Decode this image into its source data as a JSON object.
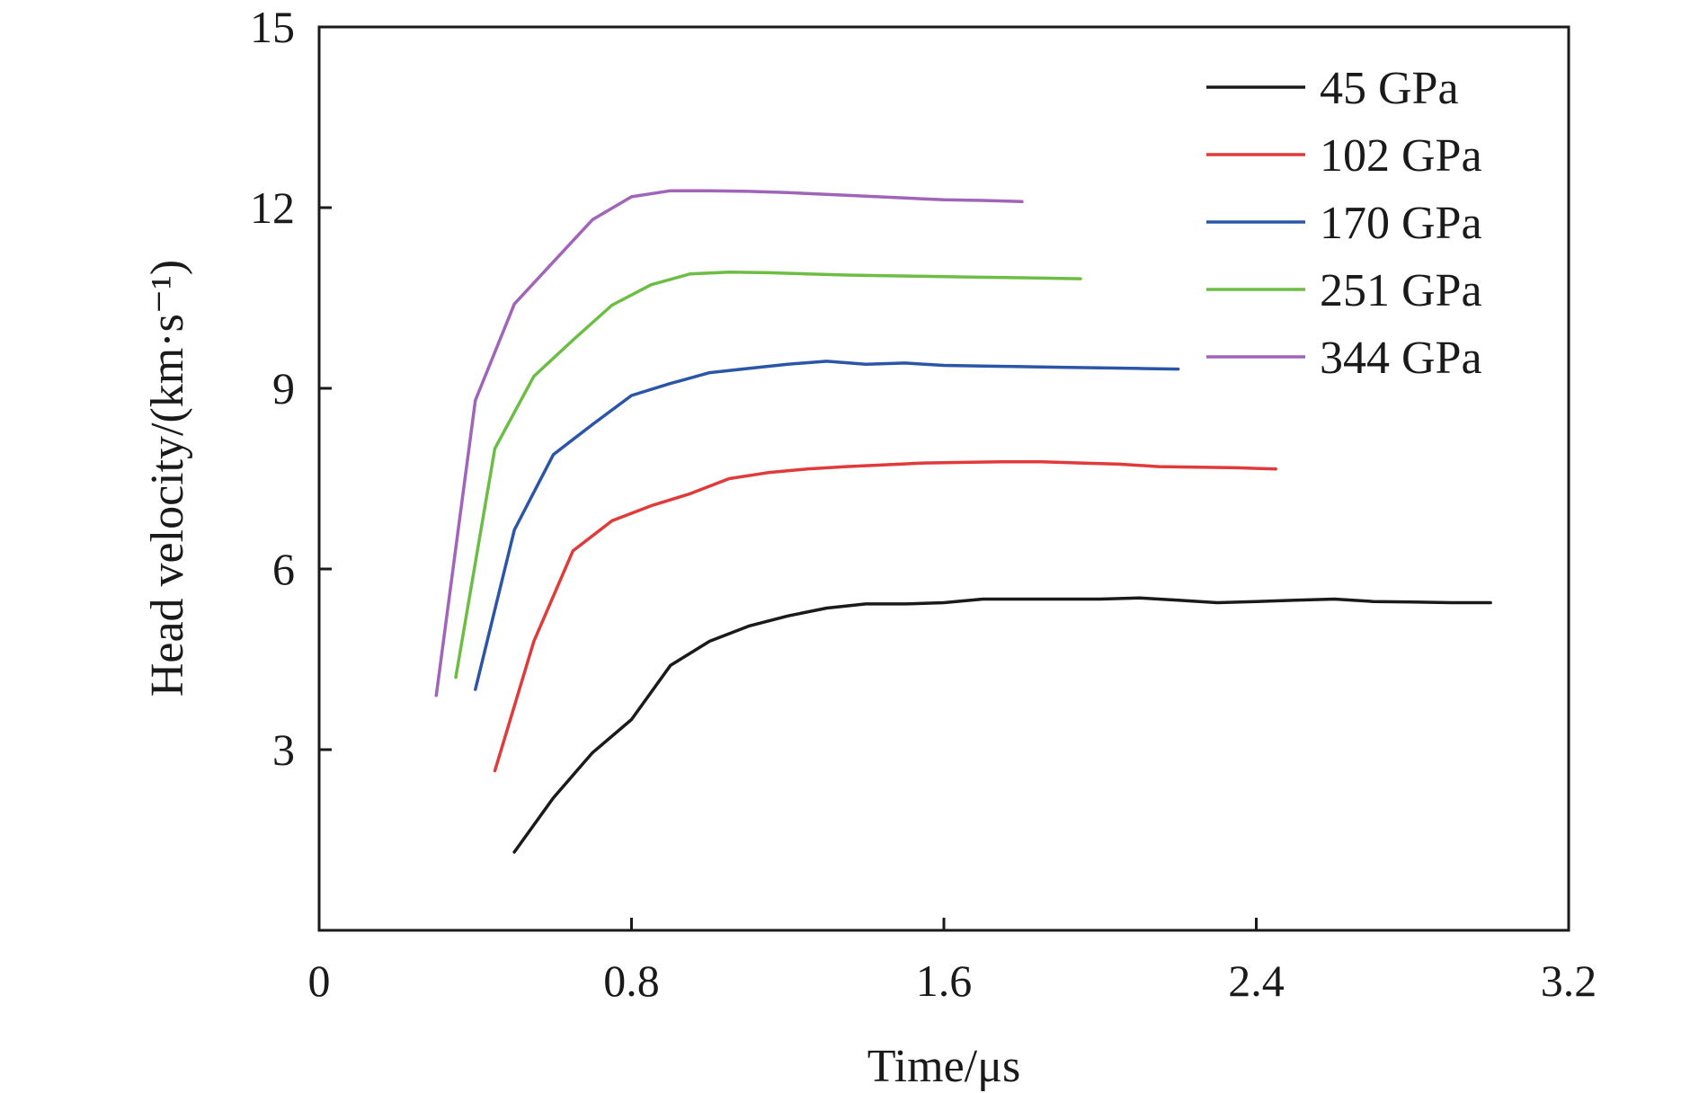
{
  "chart_data": {
    "type": "line",
    "xlabel": "Time/μs",
    "ylabel": "Head velocity/(km·s⁻¹)",
    "xlim": [
      0,
      3.2
    ],
    "ylim": [
      0,
      15
    ],
    "xticks": [
      0,
      0.8,
      1.6,
      2.4,
      3.2
    ],
    "xtick_labels": [
      "0",
      "0.8",
      "1.6",
      "2.4",
      "3.2"
    ],
    "yticks": [
      3,
      6,
      9,
      12,
      15
    ],
    "ytick_labels": [
      "3",
      "6",
      "9",
      "12",
      "15"
    ],
    "grid": false,
    "legend_position": "top-right",
    "series": [
      {
        "name": "45 GPa",
        "color": "#1a1a1a",
        "x": [
          0.5,
          0.6,
          0.7,
          0.8,
          0.9,
          1.0,
          1.1,
          1.2,
          1.3,
          1.4,
          1.5,
          1.6,
          1.7,
          1.8,
          1.9,
          2.0,
          2.1,
          2.2,
          2.3,
          2.4,
          2.5,
          2.6,
          2.7,
          2.8,
          2.9,
          3.0
        ],
        "y": [
          1.3,
          2.2,
          2.95,
          3.5,
          4.4,
          4.8,
          5.05,
          5.22,
          5.35,
          5.42,
          5.42,
          5.44,
          5.5,
          5.5,
          5.5,
          5.5,
          5.52,
          5.48,
          5.44,
          5.46,
          5.48,
          5.5,
          5.46,
          5.45,
          5.44,
          5.44
        ]
      },
      {
        "name": "102 GPa",
        "color": "#e03a3a",
        "x": [
          0.45,
          0.55,
          0.65,
          0.75,
          0.85,
          0.95,
          1.05,
          1.15,
          1.25,
          1.35,
          1.45,
          1.55,
          1.65,
          1.75,
          1.85,
          1.95,
          2.05,
          2.15,
          2.25,
          2.35,
          2.45
        ],
        "y": [
          2.65,
          4.8,
          6.3,
          6.8,
          7.05,
          7.25,
          7.5,
          7.6,
          7.66,
          7.7,
          7.73,
          7.76,
          7.77,
          7.78,
          7.78,
          7.76,
          7.74,
          7.7,
          7.69,
          7.68,
          7.66
        ]
      },
      {
        "name": "170 GPa",
        "color": "#2b56a8",
        "x": [
          0.4,
          0.5,
          0.6,
          0.7,
          0.8,
          0.9,
          1.0,
          1.1,
          1.2,
          1.3,
          1.4,
          1.5,
          1.6,
          1.7,
          1.8,
          1.9,
          2.0,
          2.1,
          2.2
        ],
        "y": [
          4.0,
          6.65,
          7.9,
          8.4,
          8.88,
          9.08,
          9.26,
          9.33,
          9.4,
          9.45,
          9.4,
          9.42,
          9.38,
          9.37,
          9.36,
          9.35,
          9.34,
          9.33,
          9.32
        ]
      },
      {
        "name": "251 GPa",
        "color": "#6dbd45",
        "x": [
          0.35,
          0.45,
          0.55,
          0.65,
          0.75,
          0.85,
          0.95,
          1.05,
          1.15,
          1.25,
          1.35,
          1.45,
          1.55,
          1.65,
          1.75,
          1.85,
          1.95
        ],
        "y": [
          4.2,
          8.0,
          9.2,
          9.8,
          10.38,
          10.72,
          10.9,
          10.93,
          10.92,
          10.9,
          10.88,
          10.87,
          10.86,
          10.85,
          10.84,
          10.83,
          10.82
        ]
      },
      {
        "name": "344 GPa",
        "color": "#a064b8",
        "x": [
          0.3,
          0.4,
          0.5,
          0.6,
          0.7,
          0.8,
          0.9,
          1.0,
          1.1,
          1.2,
          1.3,
          1.4,
          1.5,
          1.6,
          1.7,
          1.8
        ],
        "y": [
          3.9,
          8.8,
          10.4,
          11.1,
          11.8,
          12.18,
          12.28,
          12.28,
          12.27,
          12.25,
          12.22,
          12.19,
          12.16,
          12.13,
          12.12,
          12.1
        ]
      }
    ]
  }
}
